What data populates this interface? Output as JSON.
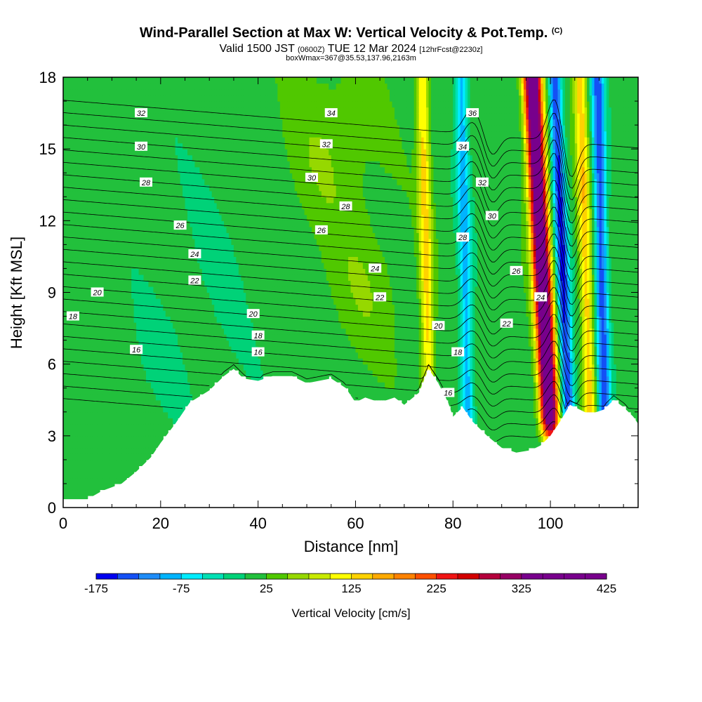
{
  "title": "Wind-Parallel Section at Max W: Vertical Velocity & Pot.Temp.",
  "copyright": "(C)",
  "subtitle": {
    "valid": "Valid 1500 JST",
    "utc": "(0600Z)",
    "date": "TUE 12 Mar 2024",
    "forecast": "[12hrFcst@2230z]"
  },
  "box_info": "boxWmax=367@35.53,137.96,2163m",
  "chart_data": {
    "type": "heatmap",
    "xlabel": "Distance [nm]",
    "ylabel": "Height [Kft MSL]",
    "xlim": [
      0,
      118
    ],
    "ylim": [
      0,
      18
    ],
    "x_ticks": [
      "0",
      "20",
      "40",
      "60",
      "80",
      "100"
    ],
    "y_ticks": [
      "0",
      "3",
      "6",
      "9",
      "12",
      "15",
      "18"
    ],
    "colorbar": {
      "label": "Vertical Velocity [cm/s]",
      "min": -175,
      "max": 425,
      "step": 25,
      "tick_labels": [
        "-175",
        "-75",
        "25",
        "125",
        "225",
        "325",
        "425"
      ],
      "colors": [
        "#0000f0",
        "#1450f5",
        "#1e8cf8",
        "#00b4ff",
        "#00ecff",
        "#00e0b4",
        "#00d278",
        "#22c03c",
        "#50c800",
        "#96d800",
        "#c8ea00",
        "#ffff00",
        "#ffd200",
        "#ffaa00",
        "#ff8200",
        "#ff5000",
        "#f01414",
        "#d20000",
        "#b4003c",
        "#960064",
        "#78008c"
      ]
    },
    "terrain_top_kft": [
      [
        0,
        0.35
      ],
      [
        5,
        0.35
      ],
      [
        8,
        0.7
      ],
      [
        12,
        1.0
      ],
      [
        15,
        1.5
      ],
      [
        18,
        2.1
      ],
      [
        20,
        2.7
      ],
      [
        23,
        3.5
      ],
      [
        26,
        4.4
      ],
      [
        30,
        4.9
      ],
      [
        33,
        5.5
      ],
      [
        35,
        5.8
      ],
      [
        37,
        5.4
      ],
      [
        40,
        5.3
      ],
      [
        43,
        5.5
      ],
      [
        47,
        5.5
      ],
      [
        50,
        5.2
      ],
      [
        55,
        5.4
      ],
      [
        58,
        5.0
      ],
      [
        60,
        4.4
      ],
      [
        62,
        4.6
      ],
      [
        65,
        4.4
      ],
      [
        68,
        4.6
      ],
      [
        70,
        4.3
      ],
      [
        73,
        4.8
      ],
      [
        75,
        5.8
      ],
      [
        77,
        5.2
      ],
      [
        79,
        4.4
      ],
      [
        80,
        3.8
      ],
      [
        82,
        4.2
      ],
      [
        84,
        3.6
      ],
      [
        87,
        3.0
      ],
      [
        90,
        2.5
      ],
      [
        93,
        2.3
      ],
      [
        96,
        2.4
      ],
      [
        98,
        2.6
      ],
      [
        100,
        3.0
      ],
      [
        102,
        3.6
      ],
      [
        104,
        4.3
      ],
      [
        106,
        4.1
      ],
      [
        108,
        3.9
      ],
      [
        111,
        4.1
      ],
      [
        113,
        4.5
      ],
      [
        115,
        4.2
      ],
      [
        117,
        3.8
      ],
      [
        118,
        3.5
      ]
    ],
    "w_features": [
      {
        "name": "updraft-main",
        "x": 99.5,
        "value": 420,
        "tilt_nm_per_kft": -0.25
      },
      {
        "name": "downdraft-main",
        "x": 103.5,
        "value": -170,
        "tilt_nm_per_kft": -0.2
      },
      {
        "name": "updraft-second",
        "x": 108,
        "value": 130,
        "tilt_nm_per_kft": -0.15
      },
      {
        "name": "downdraft-second",
        "x": 111,
        "value": -150,
        "tilt_nm_per_kft": -0.1
      },
      {
        "name": "downdraft-third",
        "x": 83,
        "value": -100,
        "tilt_nm_per_kft": -0.1
      },
      {
        "name": "updraft-third",
        "x": 75,
        "value": 120,
        "tilt_nm_per_kft": -0.1
      }
    ],
    "theta_levels": [
      14,
      15,
      16,
      17,
      18,
      19,
      20,
      21,
      22,
      23,
      24,
      25,
      26,
      27,
      28,
      29,
      30,
      31,
      32,
      33,
      34,
      35,
      36,
      37,
      38
    ],
    "contour_labels": [
      {
        "text": "32",
        "x": 16,
        "y": 16.5
      },
      {
        "text": "34",
        "x": 55,
        "y": 16.5
      },
      {
        "text": "36",
        "x": 84,
        "y": 16.5
      },
      {
        "text": "30",
        "x": 16,
        "y": 15.1
      },
      {
        "text": "32",
        "x": 54,
        "y": 15.2
      },
      {
        "text": "34",
        "x": 82,
        "y": 15.1
      },
      {
        "text": "28",
        "x": 17,
        "y": 13.6
      },
      {
        "text": "30",
        "x": 51,
        "y": 13.8
      },
      {
        "text": "32",
        "x": 86,
        "y": 13.6
      },
      {
        "text": "28",
        "x": 58,
        "y": 12.6
      },
      {
        "text": "30",
        "x": 88,
        "y": 12.2
      },
      {
        "text": "26",
        "x": 24,
        "y": 11.8
      },
      {
        "text": "26",
        "x": 53,
        "y": 11.6
      },
      {
        "text": "28",
        "x": 82,
        "y": 11.3
      },
      {
        "text": "24",
        "x": 27,
        "y": 10.6
      },
      {
        "text": "24",
        "x": 64,
        "y": 10.0
      },
      {
        "text": "26",
        "x": 93,
        "y": 9.9
      },
      {
        "text": "22",
        "x": 27,
        "y": 9.5
      },
      {
        "text": "22",
        "x": 65,
        "y": 8.8
      },
      {
        "text": "24",
        "x": 98,
        "y": 8.8
      },
      {
        "text": "20",
        "x": 7,
        "y": 9.0
      },
      {
        "text": "20",
        "x": 39,
        "y": 8.1
      },
      {
        "text": "20",
        "x": 77,
        "y": 7.6
      },
      {
        "text": "22",
        "x": 91,
        "y": 7.7
      },
      {
        "text": "18",
        "x": 2,
        "y": 8.0
      },
      {
        "text": "18",
        "x": 40,
        "y": 7.2
      },
      {
        "text": "18",
        "x": 81,
        "y": 6.5
      },
      {
        "text": "16",
        "x": 15,
        "y": 6.6
      },
      {
        "text": "16",
        "x": 40,
        "y": 6.5
      },
      {
        "text": "16",
        "x": 79,
        "y": 4.8
      }
    ]
  }
}
